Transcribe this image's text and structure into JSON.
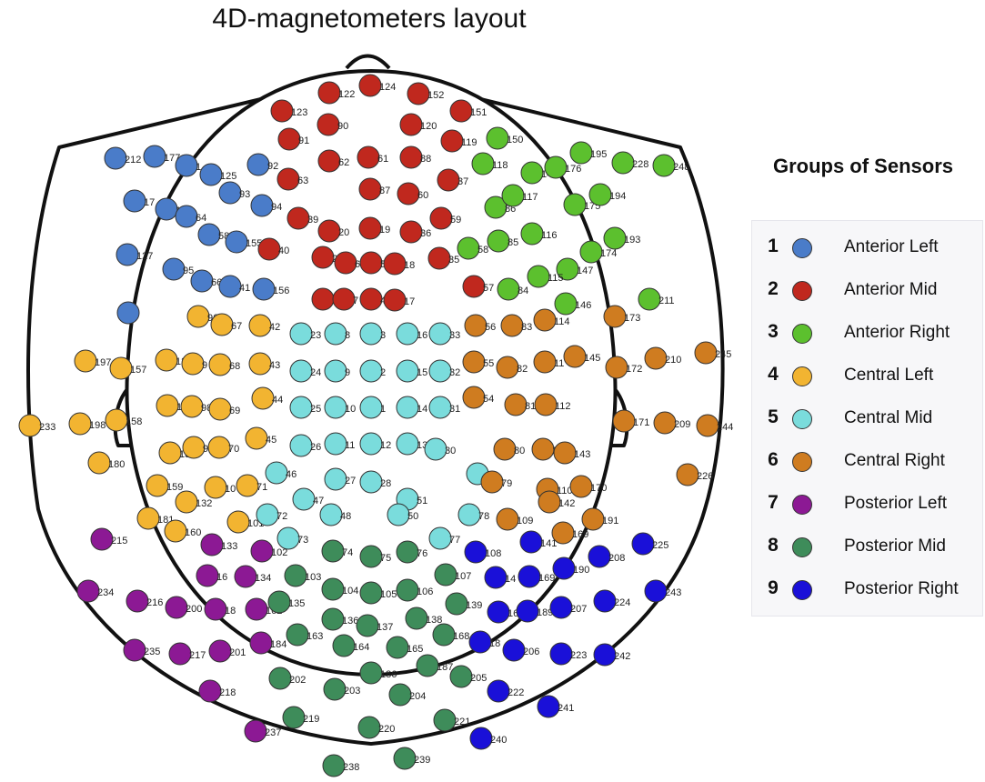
{
  "title": "4D-magnetometers layout",
  "legend": {
    "title": "Groups of Sensors",
    "items": [
      {
        "num": "1",
        "label": "Anterior Left",
        "color": "#4a7cc9"
      },
      {
        "num": "2",
        "label": "Anterior Mid",
        "color": "#c0281e"
      },
      {
        "num": "3",
        "label": "Anterior Right",
        "color": "#5cc02e"
      },
      {
        "num": "4",
        "label": "Central Left",
        "color": "#f2b431"
      },
      {
        "num": "5",
        "label": "Central Mid",
        "color": "#7adcdc"
      },
      {
        "num": "6",
        "label": "Central Right",
        "color": "#cf7c20"
      },
      {
        "num": "7",
        "label": "Posterior Left",
        "color": "#8c1994"
      },
      {
        "num": "8",
        "label": "Posterior Mid",
        "color": "#3e8c5a"
      },
      {
        "num": "9",
        "label": "Posterior Right",
        "color": "#1a10d8"
      }
    ]
  },
  "sensors": [
    {
      "label": "212",
      "group": 1
    },
    {
      "label": "177",
      "group": 1
    },
    {
      "label": "1",
      "group": 1
    },
    {
      "label": "125",
      "group": 1
    },
    {
      "label": "92",
      "group": 1
    },
    {
      "label": "93",
      "group": 1
    },
    {
      "label": "17",
      "group": 1
    },
    {
      "label": "126",
      "group": 1
    },
    {
      "label": "64",
      "group": 1
    },
    {
      "label": "94",
      "group": 1
    },
    {
      "label": "58",
      "group": 1
    },
    {
      "label": "155",
      "group": 1
    },
    {
      "label": "127",
      "group": 1
    },
    {
      "label": "95",
      "group": 1
    },
    {
      "label": "66",
      "group": 1
    },
    {
      "label": "41",
      "group": 1
    },
    {
      "label": "156",
      "group": 1
    },
    {
      "label": "",
      "group": 1
    },
    {
      "label": "124",
      "group": 2
    },
    {
      "label": "122",
      "group": 2
    },
    {
      "label": "152",
      "group": 2
    },
    {
      "label": "123",
      "group": 2
    },
    {
      "label": "90",
      "group": 2
    },
    {
      "label": "120",
      "group": 2
    },
    {
      "label": "151",
      "group": 2
    },
    {
      "label": "91",
      "group": 2
    },
    {
      "label": "119",
      "group": 2
    },
    {
      "label": "62",
      "group": 2
    },
    {
      "label": "61",
      "group": 2
    },
    {
      "label": "88",
      "group": 2
    },
    {
      "label": "63",
      "group": 2
    },
    {
      "label": "87",
      "group": 2
    },
    {
      "label": "37",
      "group": 2
    },
    {
      "label": "60",
      "group": 2
    },
    {
      "label": "39",
      "group": 2
    },
    {
      "label": "20",
      "group": 2
    },
    {
      "label": "19",
      "group": 2
    },
    {
      "label": "36",
      "group": 2
    },
    {
      "label": "59",
      "group": 2
    },
    {
      "label": "40",
      "group": 2
    },
    {
      "label": "21",
      "group": 2
    },
    {
      "label": "6",
      "group": 2
    },
    {
      "label": "5",
      "group": 2
    },
    {
      "label": "18",
      "group": 2
    },
    {
      "label": "35",
      "group": 2
    },
    {
      "label": "22",
      "group": 2
    },
    {
      "label": "7",
      "group": 2
    },
    {
      "label": "4",
      "group": 2
    },
    {
      "label": "17",
      "group": 2
    },
    {
      "label": "57",
      "group": 2
    },
    {
      "label": "150",
      "group": 3
    },
    {
      "label": "118",
      "group": 3
    },
    {
      "label": "148",
      "group": 3
    },
    {
      "label": "176",
      "group": 3
    },
    {
      "label": "195",
      "group": 3
    },
    {
      "label": "228",
      "group": 3
    },
    {
      "label": "248",
      "group": 3
    },
    {
      "label": "86",
      "group": 3
    },
    {
      "label": "117",
      "group": 3
    },
    {
      "label": "175",
      "group": 3
    },
    {
      "label": "194",
      "group": 3
    },
    {
      "label": "85",
      "group": 3
    },
    {
      "label": "116",
      "group": 3
    },
    {
      "label": "174",
      "group": 3
    },
    {
      "label": "193",
      "group": 3
    },
    {
      "label": "58",
      "group": 3
    },
    {
      "label": "147",
      "group": 3
    },
    {
      "label": "84",
      "group": 3
    },
    {
      "label": "115",
      "group": 3
    },
    {
      "label": "146",
      "group": 3
    },
    {
      "label": "211",
      "group": 3
    },
    {
      "label": "96",
      "group": 4
    },
    {
      "label": "67",
      "group": 4
    },
    {
      "label": "42",
      "group": 4
    },
    {
      "label": "197",
      "group": 4
    },
    {
      "label": "157",
      "group": 4
    },
    {
      "label": "12",
      "group": 4
    },
    {
      "label": "9",
      "group": 4
    },
    {
      "label": "68",
      "group": 4
    },
    {
      "label": "43",
      "group": 4
    },
    {
      "label": "198",
      "group": 4
    },
    {
      "label": "158",
      "group": 4
    },
    {
      "label": "12",
      "group": 4
    },
    {
      "label": "98",
      "group": 4
    },
    {
      "label": "69",
      "group": 4
    },
    {
      "label": "44",
      "group": 4
    },
    {
      "label": "233",
      "group": 4
    },
    {
      "label": "180",
      "group": 4
    },
    {
      "label": "13",
      "group": 4
    },
    {
      "label": "99",
      "group": 4
    },
    {
      "label": "70",
      "group": 4
    },
    {
      "label": "45",
      "group": 4
    },
    {
      "label": "159",
      "group": 4
    },
    {
      "label": "10",
      "group": 4
    },
    {
      "label": "71",
      "group": 4
    },
    {
      "label": "132",
      "group": 4
    },
    {
      "label": "181",
      "group": 4
    },
    {
      "label": "160",
      "group": 4
    },
    {
      "label": "101",
      "group": 4
    },
    {
      "label": "23",
      "group": 5
    },
    {
      "label": "8",
      "group": 5
    },
    {
      "label": "3",
      "group": 5
    },
    {
      "label": "16",
      "group": 5
    },
    {
      "label": "33",
      "group": 5
    },
    {
      "label": "24",
      "group": 5
    },
    {
      "label": "9",
      "group": 5
    },
    {
      "label": "2",
      "group": 5
    },
    {
      "label": "15",
      "group": 5
    },
    {
      "label": "32",
      "group": 5
    },
    {
      "label": "25",
      "group": 5
    },
    {
      "label": "10",
      "group": 5
    },
    {
      "label": "1",
      "group": 5
    },
    {
      "label": "14",
      "group": 5
    },
    {
      "label": "31",
      "group": 5
    },
    {
      "label": "26",
      "group": 5
    },
    {
      "label": "11",
      "group": 5
    },
    {
      "label": "12",
      "group": 5
    },
    {
      "label": "13",
      "group": 5
    },
    {
      "label": "30",
      "group": 5
    },
    {
      "label": "46",
      "group": 5
    },
    {
      "label": "27",
      "group": 5
    },
    {
      "label": "28",
      "group": 5
    },
    {
      "label": "52",
      "group": 5
    },
    {
      "label": "47",
      "group": 5
    },
    {
      "label": "51",
      "group": 5
    },
    {
      "label": "72",
      "group": 5
    },
    {
      "label": "48",
      "group": 5
    },
    {
      "label": "50",
      "group": 5
    },
    {
      "label": "78",
      "group": 5
    },
    {
      "label": "73",
      "group": 5
    },
    {
      "label": "77",
      "group": 5
    },
    {
      "label": "56",
      "group": 6
    },
    {
      "label": "83",
      "group": 6
    },
    {
      "label": "114",
      "group": 6
    },
    {
      "label": "173",
      "group": 6
    },
    {
      "label": "55",
      "group": 6
    },
    {
      "label": "82",
      "group": 6
    },
    {
      "label": "11",
      "group": 6
    },
    {
      "label": "145",
      "group": 6
    },
    {
      "label": "172",
      "group": 6
    },
    {
      "label": "210",
      "group": 6
    },
    {
      "label": "245",
      "group": 6
    },
    {
      "label": "54",
      "group": 6
    },
    {
      "label": "81",
      "group": 6
    },
    {
      "label": "112",
      "group": 6
    },
    {
      "label": "171",
      "group": 6
    },
    {
      "label": "209",
      "group": 6
    },
    {
      "label": "244",
      "group": 6
    },
    {
      "label": "80",
      "group": 6
    },
    {
      "label": "11",
      "group": 6
    },
    {
      "label": "143",
      "group": 6
    },
    {
      "label": "79",
      "group": 6
    },
    {
      "label": "110",
      "group": 6
    },
    {
      "label": "170",
      "group": 6
    },
    {
      "label": "226",
      "group": 6
    },
    {
      "label": "142",
      "group": 6
    },
    {
      "label": "109",
      "group": 6
    },
    {
      "label": "169",
      "group": 6
    },
    {
      "label": "191",
      "group": 6
    },
    {
      "label": "215",
      "group": 7
    },
    {
      "label": "133",
      "group": 7
    },
    {
      "label": "102",
      "group": 7
    },
    {
      "label": "16",
      "group": 7
    },
    {
      "label": "134",
      "group": 7
    },
    {
      "label": "234",
      "group": 7
    },
    {
      "label": "216",
      "group": 7
    },
    {
      "label": "200",
      "group": 7
    },
    {
      "label": "18",
      "group": 7
    },
    {
      "label": "162",
      "group": 7
    },
    {
      "label": "235",
      "group": 7
    },
    {
      "label": "217",
      "group": 7
    },
    {
      "label": "201",
      "group": 7
    },
    {
      "label": "184",
      "group": 7
    },
    {
      "label": "218",
      "group": 7
    },
    {
      "label": "237",
      "group": 7
    },
    {
      "label": "74",
      "group": 8
    },
    {
      "label": "75",
      "group": 8
    },
    {
      "label": "76",
      "group": 8
    },
    {
      "label": "103",
      "group": 8
    },
    {
      "label": "104",
      "group": 8
    },
    {
      "label": "105",
      "group": 8
    },
    {
      "label": "106",
      "group": 8
    },
    {
      "label": "107",
      "group": 8
    },
    {
      "label": "135",
      "group": 8
    },
    {
      "label": "139",
      "group": 8
    },
    {
      "label": "163",
      "group": 8
    },
    {
      "label": "136",
      "group": 8
    },
    {
      "label": "137",
      "group": 8
    },
    {
      "label": "138",
      "group": 8
    },
    {
      "label": "168",
      "group": 8
    },
    {
      "label": "164",
      "group": 8
    },
    {
      "label": "165",
      "group": 8
    },
    {
      "label": "186",
      "group": 8
    },
    {
      "label": "187",
      "group": 8
    },
    {
      "label": "202",
      "group": 8
    },
    {
      "label": "205",
      "group": 8
    },
    {
      "label": "203",
      "group": 8
    },
    {
      "label": "204",
      "group": 8
    },
    {
      "label": "219",
      "group": 8
    },
    {
      "label": "221",
      "group": 8
    },
    {
      "label": "220",
      "group": 8
    },
    {
      "label": "238",
      "group": 8
    },
    {
      "label": "239",
      "group": 8
    },
    {
      "label": "108",
      "group": 9
    },
    {
      "label": "141",
      "group": 9
    },
    {
      "label": "208",
      "group": 9
    },
    {
      "label": "225",
      "group": 9
    },
    {
      "label": "14",
      "group": 9
    },
    {
      "label": "169",
      "group": 9
    },
    {
      "label": "190",
      "group": 9
    },
    {
      "label": "16",
      "group": 9
    },
    {
      "label": "189",
      "group": 9
    },
    {
      "label": "207",
      "group": 9
    },
    {
      "label": "224",
      "group": 9
    },
    {
      "label": "243",
      "group": 9
    },
    {
      "label": "18",
      "group": 9
    },
    {
      "label": "206",
      "group": 9
    },
    {
      "label": "223",
      "group": 9
    },
    {
      "label": "242",
      "group": 9
    },
    {
      "label": "222",
      "group": 9
    },
    {
      "label": "241",
      "group": 9
    },
    {
      "label": "240",
      "group": 9
    }
  ]
}
